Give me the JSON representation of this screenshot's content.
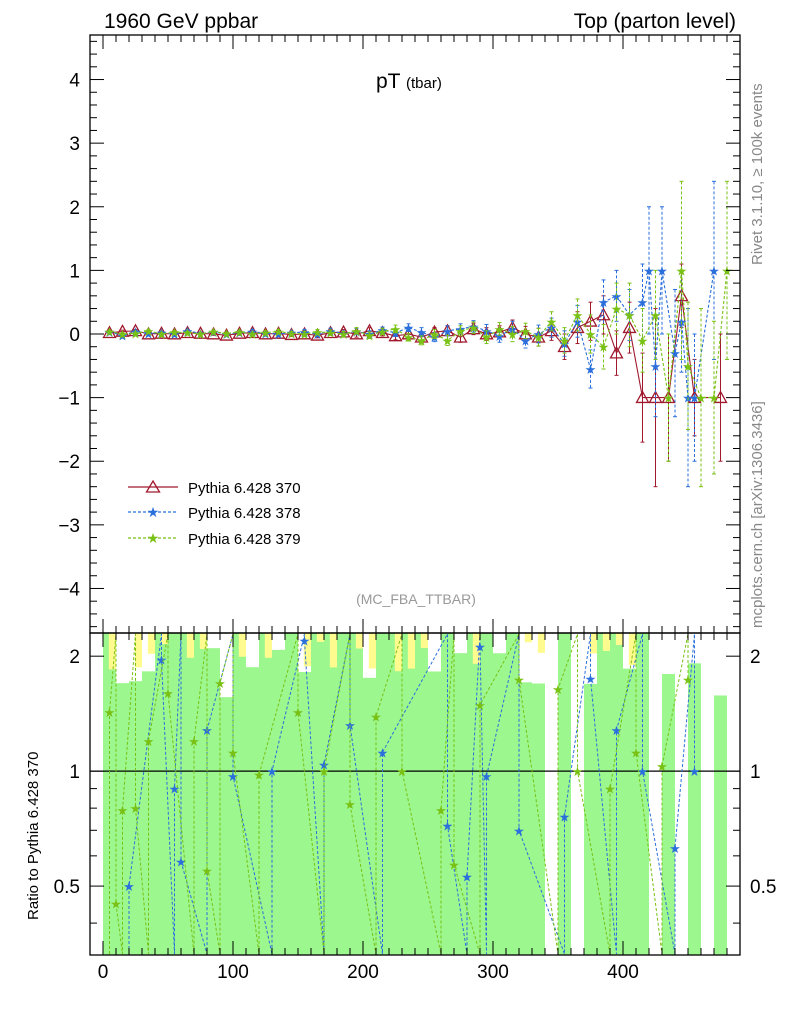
{
  "header": {
    "left_title": "1960 GeV ppbar",
    "right_title": "Top (parton level)"
  },
  "side_labels": {
    "rivet": "Rivet 3.1.10, ≥ 100k events",
    "mcplots": "mcplots.cern.ch [arXiv:1306.3436]"
  },
  "chart_data": {
    "type": "scatter",
    "title": "pT",
    "title_sub": "(tbar)",
    "analysis_tag": "(MC_FBA_TTBAR)",
    "xlim": [
      -10,
      490
    ],
    "x_ticks": [
      "0",
      "100",
      "200",
      "300",
      "400"
    ],
    "main": {
      "ylim": [
        -4.7,
        4.7
      ],
      "y_ticks": [
        "−4",
        "−3",
        "−2",
        "−1",
        "0",
        "1",
        "2",
        "3",
        "4"
      ]
    },
    "ratio": {
      "ylabel": "Ratio to Pythia 6.428 370",
      "ylim": [
        0.33,
        2.3
      ],
      "y_ticks": [
        "0.5",
        "1",
        "2"
      ]
    },
    "series": [
      {
        "name": "Pythia 6.428 370",
        "color": "#a0192d",
        "marker": "triangle",
        "x": [
          5,
          15,
          25,
          35,
          45,
          55,
          65,
          75,
          85,
          95,
          105,
          115,
          125,
          135,
          145,
          155,
          165,
          175,
          185,
          195,
          205,
          215,
          225,
          235,
          245,
          255,
          265,
          275,
          285,
          295,
          305,
          315,
          325,
          335,
          345,
          355,
          365,
          375,
          385,
          395,
          405,
          415,
          425,
          435,
          445,
          455,
          475
        ],
        "y": [
          0.02,
          0.04,
          0.05,
          0.0,
          0.01,
          0.0,
          0.02,
          0.01,
          0.0,
          -0.02,
          0.01,
          0.02,
          0.0,
          0.01,
          -0.01,
          0.0,
          -0.02,
          0.02,
          0.03,
          0.0,
          0.05,
          0.02,
          -0.03,
          0.0,
          -0.05,
          0.03,
          0.05,
          -0.05,
          0.08,
          0.0,
          0.03,
          0.1,
          0.0,
          -0.05,
          0.05,
          -0.2,
          0.1,
          0.2,
          0.3,
          -0.3,
          0.1,
          -1.0,
          -1.0,
          -1.0,
          0.6,
          -1.0,
          -1.0
        ],
        "err": [
          0.02,
          0.02,
          0.02,
          0.02,
          0.02,
          0.02,
          0.02,
          0.02,
          0.02,
          0.02,
          0.03,
          0.03,
          0.03,
          0.03,
          0.03,
          0.04,
          0.04,
          0.04,
          0.04,
          0.05,
          0.05,
          0.05,
          0.06,
          0.06,
          0.07,
          0.07,
          0.08,
          0.08,
          0.09,
          0.1,
          0.1,
          0.12,
          0.12,
          0.14,
          0.15,
          0.2,
          0.25,
          0.3,
          0.3,
          0.35,
          0.4,
          0.7,
          1.4,
          1.0,
          0.5,
          0.6,
          1.0
        ]
      },
      {
        "name": "Pythia 6.428 378",
        "color": "#2a6fdb",
        "marker": "star",
        "x": [
          5,
          15,
          25,
          35,
          45,
          55,
          65,
          75,
          85,
          95,
          105,
          115,
          125,
          135,
          145,
          155,
          165,
          175,
          185,
          195,
          205,
          215,
          225,
          235,
          245,
          255,
          265,
          275,
          285,
          295,
          305,
          315,
          325,
          335,
          345,
          355,
          365,
          375,
          385,
          395,
          405,
          415,
          420,
          425,
          430,
          440,
          445,
          450,
          455,
          470
        ],
        "y": [
          0.03,
          -0.02,
          0.04,
          0.01,
          0.02,
          0.0,
          0.05,
          0.01,
          0.03,
          0.0,
          0.02,
          0.04,
          0.01,
          0.0,
          0.02,
          0.03,
          0.0,
          0.05,
          0.01,
          0.04,
          0.0,
          0.06,
          0.02,
          0.1,
          0.03,
          -0.05,
          0.05,
          0.08,
          0.12,
          0.05,
          -0.03,
          0.08,
          -0.1,
          0.0,
          0.1,
          -0.15,
          0.2,
          -0.55,
          0.5,
          0.6,
          0.3,
          0.5,
          1.0,
          -0.5,
          1.0,
          -0.3,
          0.2,
          -1.0,
          -1.0,
          1.0
        ],
        "err": [
          0.02,
          0.02,
          0.02,
          0.02,
          0.02,
          0.02,
          0.02,
          0.02,
          0.02,
          0.02,
          0.03,
          0.03,
          0.03,
          0.03,
          0.03,
          0.04,
          0.04,
          0.04,
          0.04,
          0.05,
          0.05,
          0.05,
          0.06,
          0.06,
          0.07,
          0.07,
          0.08,
          0.08,
          0.09,
          0.1,
          0.1,
          0.12,
          0.12,
          0.14,
          0.15,
          0.2,
          0.25,
          0.3,
          0.35,
          0.4,
          0.4,
          0.6,
          1.0,
          0.8,
          1.0,
          1.0,
          0.8,
          1.4,
          1.0,
          1.4
        ]
      },
      {
        "name": "Pythia 6.428 379",
        "color": "#79c114",
        "marker": "star",
        "x": [
          5,
          15,
          25,
          35,
          45,
          55,
          65,
          75,
          85,
          95,
          105,
          115,
          125,
          135,
          145,
          155,
          165,
          175,
          185,
          195,
          205,
          215,
          225,
          235,
          245,
          255,
          265,
          275,
          285,
          295,
          305,
          315,
          325,
          335,
          345,
          355,
          365,
          375,
          385,
          395,
          405,
          415,
          425,
          435,
          445,
          450,
          460,
          470,
          480
        ],
        "y": [
          0.04,
          0.0,
          0.01,
          0.05,
          0.0,
          0.03,
          0.02,
          0.0,
          0.04,
          0.01,
          0.03,
          0.0,
          0.02,
          0.04,
          0.01,
          0.0,
          0.03,
          0.02,
          0.0,
          0.05,
          -0.02,
          0.04,
          0.08,
          -0.05,
          -0.1,
          0.0,
          -0.1,
          0.05,
          0.1,
          -0.05,
          0.08,
          0.0,
          0.05,
          -0.05,
          0.2,
          -0.1,
          0.3,
          0.0,
          -0.2,
          0.4,
          0.3,
          -0.1,
          0.3,
          -1.0,
          1.0,
          -0.5,
          -1.0,
          -1.0,
          1.0
        ],
        "err": [
          0.02,
          0.02,
          0.02,
          0.02,
          0.02,
          0.02,
          0.02,
          0.02,
          0.02,
          0.02,
          0.03,
          0.03,
          0.03,
          0.03,
          0.03,
          0.04,
          0.04,
          0.04,
          0.04,
          0.05,
          0.05,
          0.05,
          0.06,
          0.06,
          0.07,
          0.07,
          0.08,
          0.08,
          0.09,
          0.1,
          0.1,
          0.12,
          0.12,
          0.14,
          0.15,
          0.2,
          0.25,
          0.3,
          0.35,
          0.4,
          0.5,
          0.5,
          0.7,
          1.0,
          1.4,
          1.0,
          1.4,
          1.2,
          1.4
        ]
      }
    ],
    "ratio_points": [
      {
        "series": 1,
        "x": [
          20,
          45,
          55,
          60,
          80,
          100,
          130,
          155,
          170,
          190,
          215,
          265,
          280,
          290,
          295,
          320,
          355,
          375,
          395,
          415,
          440,
          455
        ],
        "y": [
          0.5,
          1.96,
          0.9,
          0.58,
          1.28,
          0.97,
          1.0,
          2.2,
          1.04,
          1.32,
          1.12,
          0.72,
          0.53,
          2.12,
          0.97,
          0.7,
          0.76,
          1.75,
          1.28,
          1.0,
          0.63,
          1.0
        ]
      },
      {
        "series": 2,
        "x": [
          5,
          10,
          15,
          25,
          35,
          50,
          70,
          80,
          90,
          100,
          120,
          150,
          170,
          190,
          210,
          230,
          260,
          270,
          290,
          320,
          350,
          365,
          390,
          410,
          430,
          450
        ],
        "y": [
          1.43,
          0.45,
          0.79,
          0.8,
          1.2,
          1.6,
          1.2,
          0.55,
          1.7,
          1.12,
          0.98,
          1.43,
          1.0,
          0.82,
          1.39,
          1.0,
          0.79,
          0.57,
          1.49,
          1.74,
          1.64,
          1.0,
          0.9,
          1.12,
          1.03,
          1.74
        ]
      }
    ],
    "ratio_bands": {
      "yellow_note": "MC uncertainty band (outer)",
      "green_note": "MC uncertainty band (inner)"
    }
  },
  "colors": {
    "band_green": "#9cf78e",
    "band_yellow": "#fffb8e",
    "ref_line": "#000000",
    "tag_grey": "#999999"
  }
}
